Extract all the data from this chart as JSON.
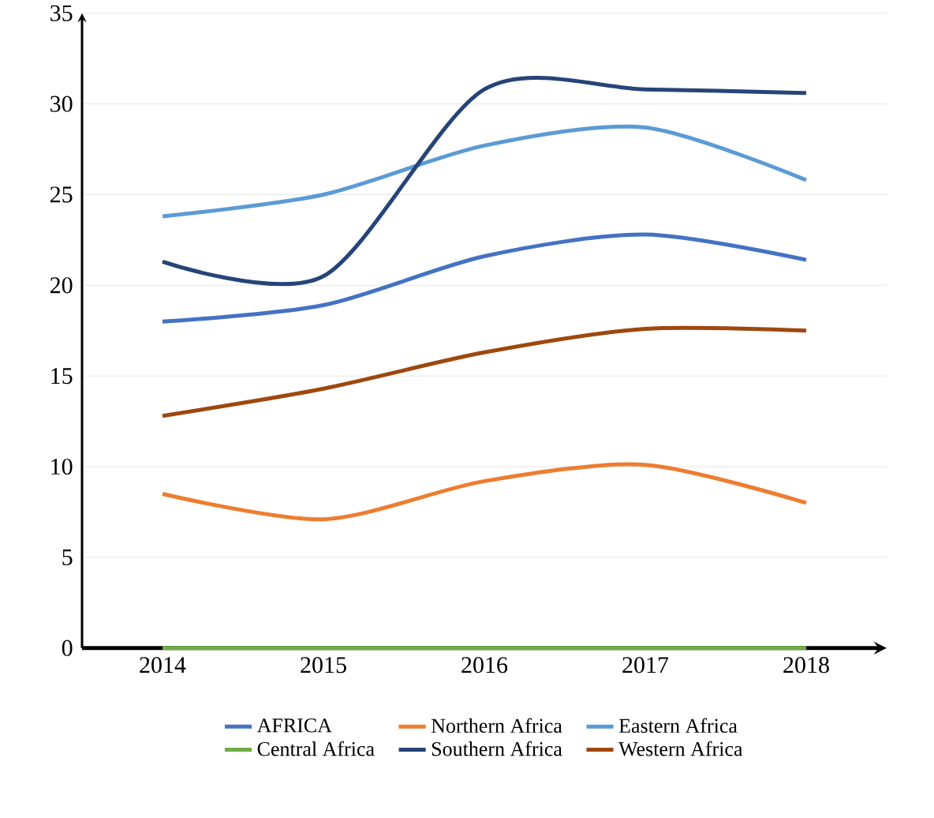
{
  "chart_data": {
    "type": "line",
    "categories": [
      "2014",
      "2015",
      "2016",
      "2017",
      "2018"
    ],
    "ylim": [
      0,
      35
    ],
    "yticks": [
      0,
      5,
      10,
      15,
      20,
      25,
      30,
      35
    ],
    "grid": "y",
    "legend": "bottom",
    "line_style": "solid",
    "marker": "none",
    "series": [
      {
        "name": "AFRICA",
        "color": "#4472c4",
        "values": [
          18.0,
          18.9,
          21.6,
          22.8,
          21.4
        ]
      },
      {
        "name": "Northern Africa",
        "color": "#ed7d31",
        "values": [
          8.5,
          7.1,
          9.2,
          10.1,
          8.0
        ]
      },
      {
        "name": "Eastern Africa",
        "color": "#5b9bd5",
        "values": [
          23.8,
          25.0,
          27.7,
          28.7,
          25.8
        ]
      },
      {
        "name": "Central Africa",
        "color": "#70ad47",
        "values": [
          0,
          0,
          0,
          0,
          0
        ]
      },
      {
        "name": "Southern Africa",
        "color": "#264478",
        "values": [
          21.3,
          20.5,
          30.8,
          30.8,
          30.6
        ]
      },
      {
        "name": "Western Africa",
        "color": "#9e480e",
        "values": [
          12.8,
          14.3,
          16.3,
          17.6,
          17.5
        ]
      }
    ]
  }
}
